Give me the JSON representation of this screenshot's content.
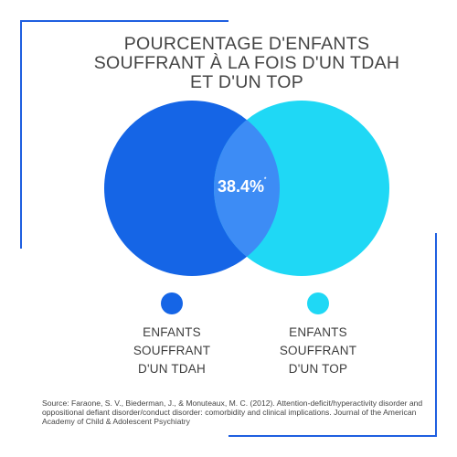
{
  "title": {
    "line1": "POURCENTAGE D'ENFANTS",
    "line2": "SOUFFRANT À LA FOIS D'UN TDAH",
    "line3": "ET D'UN TOP"
  },
  "overlap": {
    "value": "38.4%",
    "mark": "*"
  },
  "legend": [
    {
      "line1": "ENFANTS",
      "line2": "SOUFFRANT",
      "line3": "D'UN TDAH",
      "color": "#1565e6"
    },
    {
      "line1": "ENFANTS",
      "line2": "SOUFFRANT",
      "line3": "D'UN TOP",
      "color": "#1fd8f5"
    }
  ],
  "colors": {
    "left_circle": "#1565e6",
    "right_circle": "#1fd8f5",
    "overlap": "#3d8cf5",
    "frame": "#1f5fe0"
  },
  "source": "Source: Faraone, S. V., Biederman, J., & Monuteaux, M. C. (2012). Attention-deficit/hyperactivity disorder and oppositional defiant disorder/conduct disorder: comorbidity and clinical implications. Journal of the American Academy of Child & Adolescent Psychiatry"
}
